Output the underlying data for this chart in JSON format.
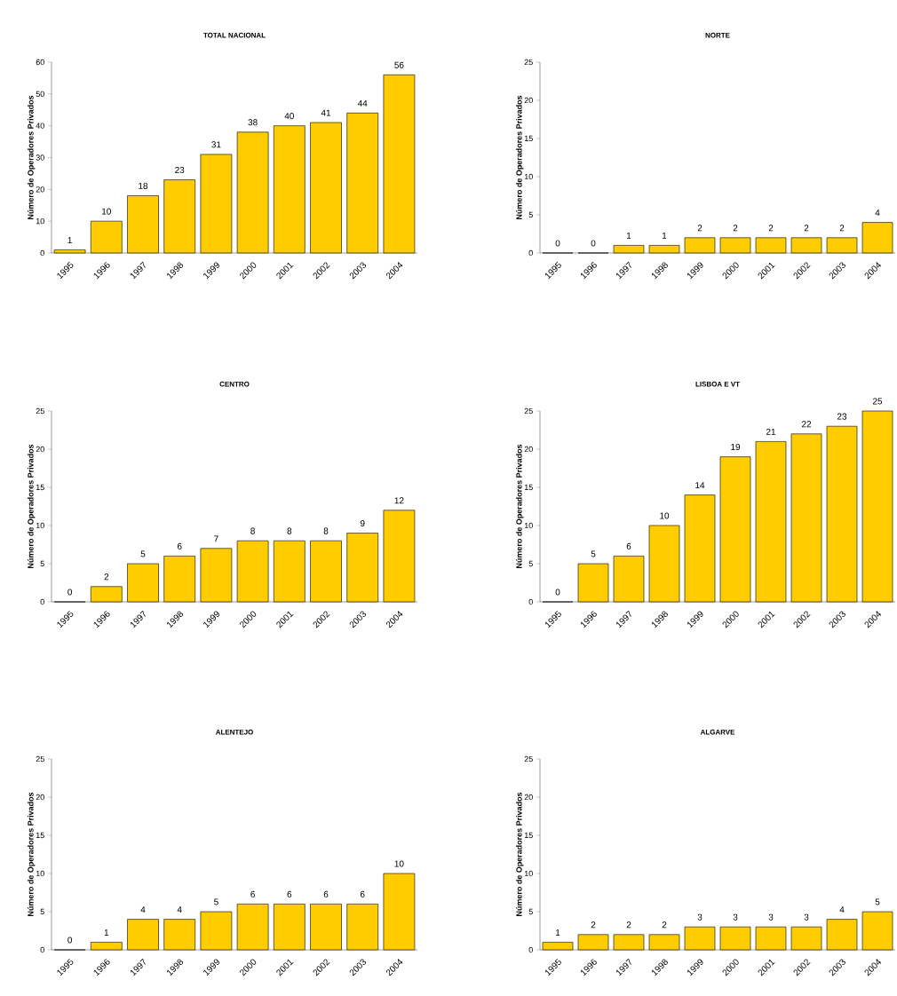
{
  "chart_data": [
    {
      "type": "bar",
      "title": "TOTAL NACIONAL",
      "ylabel": "Número de Operadores Privados",
      "categories": [
        "1995",
        "1996",
        "1997",
        "1998",
        "1999",
        "2000",
        "2001",
        "2002",
        "2003",
        "2004"
      ],
      "values": [
        1,
        10,
        18,
        23,
        31,
        38,
        40,
        41,
        44,
        56
      ],
      "color": "#ffcc00",
      "ylim": [
        0,
        60
      ],
      "yticks": [
        0,
        10,
        20,
        30,
        40,
        50,
        60
      ],
      "data_labels": true
    },
    {
      "type": "bar",
      "title": "NORTE",
      "ylabel": "Número de Operadores Privados",
      "categories": [
        "1995",
        "1996",
        "1997",
        "1998",
        "1999",
        "2000",
        "2001",
        "2002",
        "2003",
        "2004"
      ],
      "values": [
        0,
        0,
        1,
        1,
        2,
        2,
        2,
        2,
        2,
        4
      ],
      "color": "#ffcc00",
      "ylim": [
        0,
        25
      ],
      "yticks": [
        0,
        5,
        10,
        15,
        20,
        25
      ],
      "data_labels": true
    },
    {
      "type": "bar",
      "title": "CENTRO",
      "ylabel": "Número de Operadores Privados",
      "categories": [
        "1995",
        "1996",
        "1997",
        "1998",
        "1999",
        "2000",
        "2001",
        "2002",
        "2003",
        "2004"
      ],
      "values": [
        0,
        2,
        5,
        6,
        7,
        8,
        8,
        8,
        9,
        12
      ],
      "color": "#ffcc00",
      "ylim": [
        0,
        25
      ],
      "yticks": [
        0,
        5,
        10,
        15,
        20,
        25
      ],
      "data_labels": true
    },
    {
      "type": "bar",
      "title": "LISBOA E VT",
      "ylabel": "Número de Operadores Privados",
      "categories": [
        "1995",
        "1996",
        "1997",
        "1998",
        "1999",
        "2000",
        "2001",
        "2002",
        "2003",
        "2004"
      ],
      "values": [
        0,
        5,
        6,
        10,
        14,
        19,
        21,
        22,
        23,
        25
      ],
      "color": "#ffcc00",
      "ylim": [
        0,
        25
      ],
      "yticks": [
        0,
        5,
        10,
        15,
        20,
        25
      ],
      "data_labels": true
    },
    {
      "type": "bar",
      "title": "ALENTEJO",
      "ylabel": "Número de Operadores Privados",
      "categories": [
        "1995",
        "1996",
        "1997",
        "1998",
        "1999",
        "2000",
        "2001",
        "2002",
        "2003",
        "2004"
      ],
      "values": [
        0,
        1,
        4,
        4,
        5,
        6,
        6,
        6,
        6,
        10
      ],
      "color": "#ffcc00",
      "ylim": [
        0,
        25
      ],
      "yticks": [
        0,
        5,
        10,
        15,
        20,
        25
      ],
      "data_labels": true
    },
    {
      "type": "bar",
      "title": "ALGARVE",
      "ylabel": "Número de Operadores Privados",
      "categories": [
        "1995",
        "1996",
        "1997",
        "1998",
        "1999",
        "2000",
        "2001",
        "2002",
        "2003",
        "2004"
      ],
      "values": [
        1,
        2,
        2,
        2,
        3,
        3,
        3,
        3,
        4,
        5
      ],
      "color": "#ffcc00",
      "ylim": [
        0,
        25
      ],
      "yticks": [
        0,
        5,
        10,
        15,
        20,
        25
      ],
      "data_labels": true
    }
  ]
}
